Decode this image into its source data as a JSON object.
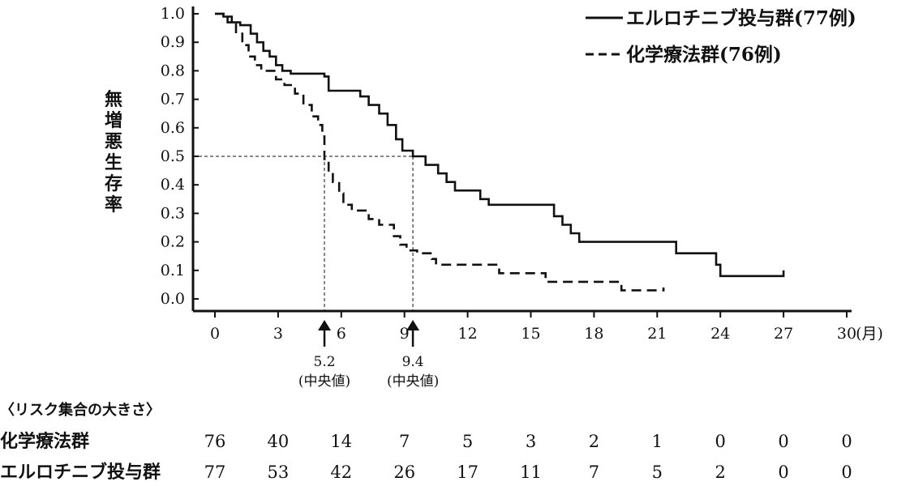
{
  "chart_data": {
    "type": "line",
    "ylabel": "無増悪生存率",
    "xunit": "(月)",
    "xlim": [
      0,
      30
    ],
    "ylim": [
      0,
      1.0
    ],
    "x_ticks": [
      0,
      3,
      6,
      9,
      12,
      15,
      18,
      21,
      24,
      27,
      30
    ],
    "x_tick_labels": [
      "0",
      "3",
      "6",
      "9",
      "12",
      "15",
      "18",
      "21",
      "24",
      "27",
      "30"
    ],
    "y_ticks": [
      0,
      0.1,
      0.2,
      0.3,
      0.4,
      0.5,
      0.6,
      0.7,
      0.8,
      0.9,
      1.0
    ],
    "y_tick_labels": [
      "0.0",
      "0.1",
      "0.2",
      "0.3",
      "0.4",
      "0.5",
      "0.6",
      "0.7",
      "0.8",
      "0.9",
      "1.0"
    ],
    "grid": false,
    "legend_position": "top-right",
    "series": [
      {
        "name": "エルロチニブ投与群(77例)",
        "style": "solid",
        "points": [
          [
            0,
            1.0
          ],
          [
            0.4,
            1.0
          ],
          [
            0.4,
            0.99
          ],
          [
            0.8,
            0.99
          ],
          [
            0.8,
            0.97
          ],
          [
            1.2,
            0.97
          ],
          [
            1.2,
            0.96
          ],
          [
            1.7,
            0.96
          ],
          [
            1.7,
            0.93
          ],
          [
            2.0,
            0.93
          ],
          [
            2.0,
            0.9
          ],
          [
            2.3,
            0.9
          ],
          [
            2.3,
            0.87
          ],
          [
            2.6,
            0.87
          ],
          [
            2.6,
            0.85
          ],
          [
            2.9,
            0.85
          ],
          [
            2.9,
            0.82
          ],
          [
            3.2,
            0.82
          ],
          [
            3.2,
            0.8
          ],
          [
            3.6,
            0.8
          ],
          [
            3.6,
            0.79
          ],
          [
            5.2,
            0.79
          ],
          [
            5.2,
            0.78
          ],
          [
            5.4,
            0.78
          ],
          [
            5.4,
            0.73
          ],
          [
            6.9,
            0.73
          ],
          [
            6.9,
            0.71
          ],
          [
            7.3,
            0.71
          ],
          [
            7.3,
            0.68
          ],
          [
            7.8,
            0.68
          ],
          [
            7.8,
            0.65
          ],
          [
            8.2,
            0.65
          ],
          [
            8.2,
            0.61
          ],
          [
            8.6,
            0.61
          ],
          [
            8.6,
            0.56
          ],
          [
            8.9,
            0.56
          ],
          [
            8.9,
            0.52
          ],
          [
            9.4,
            0.52
          ],
          [
            9.4,
            0.5
          ],
          [
            10.0,
            0.5
          ],
          [
            10.0,
            0.47
          ],
          [
            10.6,
            0.47
          ],
          [
            10.6,
            0.44
          ],
          [
            11.0,
            0.44
          ],
          [
            11.0,
            0.41
          ],
          [
            11.4,
            0.41
          ],
          [
            11.4,
            0.38
          ],
          [
            12.6,
            0.38
          ],
          [
            12.6,
            0.35
          ],
          [
            13.0,
            0.35
          ],
          [
            13.0,
            0.33
          ],
          [
            16.1,
            0.33
          ],
          [
            16.1,
            0.29
          ],
          [
            16.5,
            0.29
          ],
          [
            16.5,
            0.26
          ],
          [
            16.9,
            0.26
          ],
          [
            16.9,
            0.23
          ],
          [
            17.3,
            0.23
          ],
          [
            17.3,
            0.2
          ],
          [
            21.9,
            0.2
          ],
          [
            21.9,
            0.16
          ],
          [
            23.8,
            0.16
          ],
          [
            23.8,
            0.12
          ],
          [
            24.0,
            0.12
          ],
          [
            24.0,
            0.08
          ],
          [
            27.0,
            0.08
          ],
          [
            27.0,
            0.1
          ]
        ]
      },
      {
        "name": "化学療法群(76例)",
        "style": "dashed",
        "points": [
          [
            0,
            1.0
          ],
          [
            0.6,
            1.0
          ],
          [
            0.6,
            0.97
          ],
          [
            1.0,
            0.97
          ],
          [
            1.0,
            0.93
          ],
          [
            1.3,
            0.93
          ],
          [
            1.3,
            0.89
          ],
          [
            1.6,
            0.89
          ],
          [
            1.6,
            0.85
          ],
          [
            1.9,
            0.85
          ],
          [
            1.9,
            0.82
          ],
          [
            2.2,
            0.82
          ],
          [
            2.2,
            0.8
          ],
          [
            2.9,
            0.8
          ],
          [
            2.9,
            0.77
          ],
          [
            3.3,
            0.77
          ],
          [
            3.3,
            0.75
          ],
          [
            3.8,
            0.75
          ],
          [
            3.8,
            0.72
          ],
          [
            4.2,
            0.72
          ],
          [
            4.2,
            0.68
          ],
          [
            4.6,
            0.68
          ],
          [
            4.6,
            0.64
          ],
          [
            4.9,
            0.64
          ],
          [
            4.9,
            0.61
          ],
          [
            5.1,
            0.61
          ],
          [
            5.1,
            0.57
          ],
          [
            5.2,
            0.57
          ],
          [
            5.2,
            0.49
          ],
          [
            5.4,
            0.49
          ],
          [
            5.4,
            0.45
          ],
          [
            5.6,
            0.45
          ],
          [
            5.6,
            0.41
          ],
          [
            5.9,
            0.41
          ],
          [
            5.9,
            0.37
          ],
          [
            6.1,
            0.37
          ],
          [
            6.1,
            0.33
          ],
          [
            6.5,
            0.33
          ],
          [
            6.5,
            0.31
          ],
          [
            7.3,
            0.31
          ],
          [
            7.3,
            0.28
          ],
          [
            7.8,
            0.28
          ],
          [
            7.8,
            0.26
          ],
          [
            8.5,
            0.26
          ],
          [
            8.5,
            0.22
          ],
          [
            8.8,
            0.22
          ],
          [
            8.8,
            0.19
          ],
          [
            9.1,
            0.19
          ],
          [
            9.1,
            0.17
          ],
          [
            9.6,
            0.17
          ],
          [
            9.6,
            0.16
          ],
          [
            10.3,
            0.16
          ],
          [
            10.3,
            0.14
          ],
          [
            10.5,
            0.14
          ],
          [
            10.5,
            0.12
          ],
          [
            13.5,
            0.12
          ],
          [
            13.5,
            0.09
          ],
          [
            15.7,
            0.09
          ],
          [
            15.7,
            0.06
          ],
          [
            19.3,
            0.06
          ],
          [
            19.3,
            0.03
          ],
          [
            21.3,
            0.03
          ],
          [
            21.3,
            0.04
          ]
        ]
      }
    ],
    "medians": [
      {
        "value_label": "5.2",
        "note": "(中央値)",
        "x": 5.2
      },
      {
        "value_label": "9.4",
        "note": "(中央値)",
        "x": 9.4
      }
    ],
    "risk_table": {
      "title": "〈リスク集合の大きさ〉",
      "rows": [
        {
          "name": "化学療法群",
          "values": [
            "76",
            "40",
            "14",
            "7",
            "5",
            "3",
            "2",
            "1",
            "0",
            "0",
            "0"
          ]
        },
        {
          "name": "エルロチニブ投与群",
          "values": [
            "77",
            "53",
            "42",
            "26",
            "17",
            "11",
            "7",
            "5",
            "2",
            "0",
            "0"
          ]
        }
      ]
    }
  }
}
